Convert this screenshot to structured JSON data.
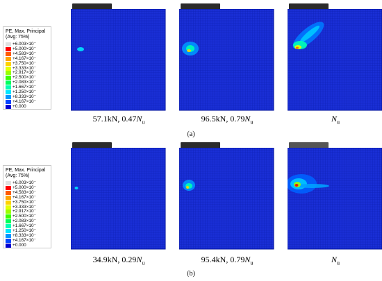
{
  "legend": {
    "title_line1": "PE, Max. Principal",
    "title_line2": "(Avg: 75%)",
    "entries": [
      {
        "label": "+6.003×10⁻",
        "color": "#e0e0e0"
      },
      {
        "label": "+5.000×10⁻",
        "color": "#ff0000"
      },
      {
        "label": "+4.583×10⁻",
        "color": "#ff5a00"
      },
      {
        "label": "+4.167×10⁻",
        "color": "#ffa500"
      },
      {
        "label": "+3.750×10⁻",
        "color": "#ffd200"
      },
      {
        "label": "+3.333×10⁻",
        "color": "#e6ff00"
      },
      {
        "label": "+2.917×10⁻",
        "color": "#9bff00"
      },
      {
        "label": "+2.500×10⁻",
        "color": "#3cff00"
      },
      {
        "label": "+2.083×10⁻",
        "color": "#00ff5a"
      },
      {
        "label": "+1.667×10⁻",
        "color": "#00ffb4"
      },
      {
        "label": "+1.250×10⁻",
        "color": "#00e6ff"
      },
      {
        "label": "+8.333×10⁻",
        "color": "#0096ff"
      },
      {
        "label": "+4.167×10⁻",
        "color": "#0046ff"
      },
      {
        "label": "+0.000",
        "color": "#0000d2"
      }
    ]
  },
  "rows": [
    {
      "label": "(a)",
      "panels": [
        {
          "load": "57.1kN, 0.47",
          "sym": "N",
          "sub": "u"
        },
        {
          "load": "96.5kN, 0.79",
          "sym": "N",
          "sub": "u"
        },
        {
          "load": "",
          "sym": "N",
          "sub": "u"
        }
      ]
    },
    {
      "label": "(b)",
      "panels": [
        {
          "load": "34.9kN, 0.29",
          "sym": "N",
          "sub": "u"
        },
        {
          "load": "95.4kN, 0.79",
          "sym": "N",
          "sub": "u"
        },
        {
          "load": "",
          "sym": "N",
          "sub": "u"
        }
      ]
    }
  ]
}
